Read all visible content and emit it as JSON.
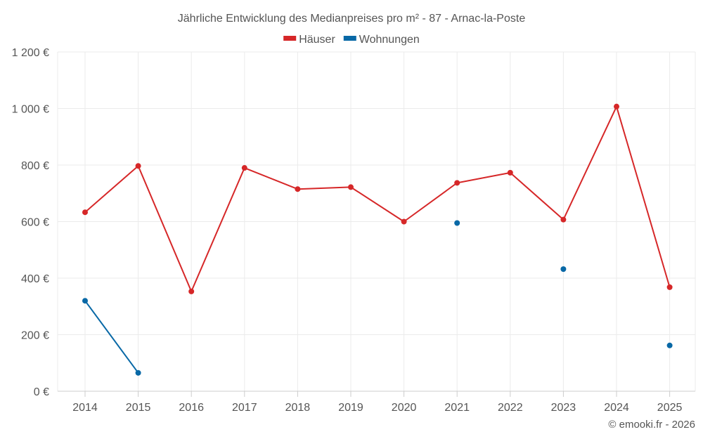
{
  "chart_data": {
    "type": "line",
    "title": "Jährliche Entwicklung des Medianpreises pro m² - 87 - Arnac-la-Poste",
    "categories": [
      "2014",
      "2015",
      "2016",
      "2017",
      "2018",
      "2019",
      "2020",
      "2021",
      "2022",
      "2023",
      "2024",
      "2025"
    ],
    "series": [
      {
        "name": "Häuser",
        "color": "#d62728",
        "values": [
          633,
          797,
          353,
          790,
          715,
          722,
          600,
          737,
          773,
          607,
          1007,
          368
        ]
      },
      {
        "name": "Wohnungen",
        "color": "#0868a6",
        "values": [
          320,
          65,
          null,
          null,
          null,
          null,
          null,
          595,
          null,
          432,
          null,
          162
        ]
      }
    ],
    "ylim": [
      0,
      1200
    ],
    "yticks": [
      0,
      200,
      400,
      600,
      800,
      1000,
      1200
    ],
    "ytick_labels": [
      "0 €",
      "200 €",
      "400 €",
      "600 €",
      "800 €",
      "1 000 €",
      "1 200 €"
    ],
    "xlabel": "",
    "ylabel": "",
    "grid": true,
    "legend_position": "top-center"
  },
  "credit": "© emooki.fr - 2026"
}
